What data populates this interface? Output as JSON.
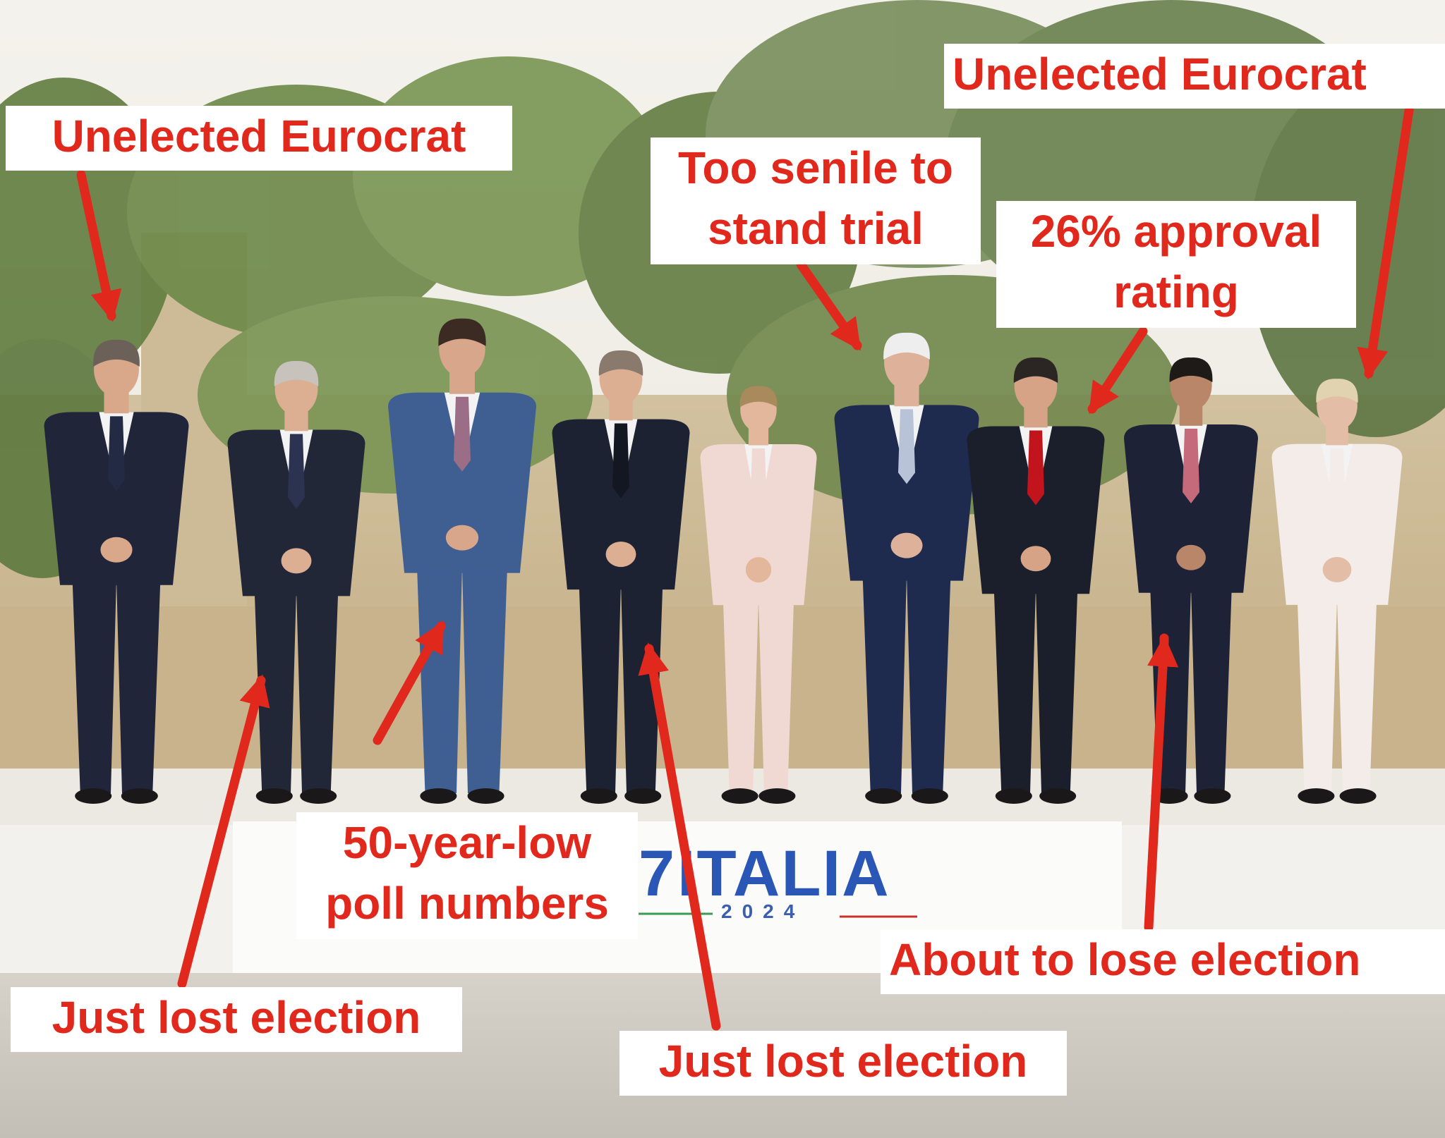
{
  "colors": {
    "annotation_red": "#e0281c",
    "label_bg": "#ffffff",
    "logo_blue": "#2a57b6",
    "sky": "#f2f0ea",
    "stone": "#cdbb97",
    "foliage": "#6f8a4a",
    "stage_floor": "#ece9e3",
    "ground": "#c9c5bd"
  },
  "logo": {
    "mark": "7",
    "word": "ITALIA",
    "year": "2024"
  },
  "annotations": [
    {
      "text": [
        "Unelected Eurocrat"
      ]
    },
    {
      "text": [
        "Unelected Eurocrat"
      ]
    },
    {
      "text": [
        "Too senile to",
        "stand trial"
      ]
    },
    {
      "text": [
        "26% approval",
        "rating"
      ]
    },
    {
      "text": [
        "50-year-low",
        "poll numbers"
      ]
    },
    {
      "text": [
        "Just lost election"
      ]
    },
    {
      "text": [
        "Just lost election"
      ]
    },
    {
      "text": [
        "About to lose election"
      ]
    }
  ],
  "people": [
    {
      "suit": "#20253a",
      "tie": "#222a44",
      "skin": "#d9a88a",
      "hair": "#6b6158"
    },
    {
      "suit": "#222737",
      "tie": "#2b3350",
      "skin": "#dcae92",
      "hair": "#c7c2bc"
    },
    {
      "suit": "#3f5f93",
      "tie": "#9b6d87",
      "skin": "#d8a68a",
      "hair": "#3b2b22"
    },
    {
      "suit": "#1d2233",
      "tie": "#131722",
      "skin": "#dcae92",
      "hair": "#8a7a6e"
    },
    {
      "suit": "#f0d9d2",
      "tie": "#f0d9d2",
      "skin": "#e2b79c",
      "hair": "#a88a5c"
    },
    {
      "suit": "#1f2a4f",
      "tie": "#b9c3d8",
      "skin": "#deb29a",
      "hair": "#eeeeee"
    },
    {
      "suit": "#1b1e2b",
      "tie": "#c2141c",
      "skin": "#d6a387",
      "hair": "#2b2624"
    },
    {
      "suit": "#1d2236",
      "tie": "#c56a7a",
      "skin": "#b9866a",
      "hair": "#1e1a18"
    },
    {
      "suit": "#f3ece9",
      "tie": "#f3ece9",
      "skin": "#e3bda6",
      "hair": "#e2d3b0"
    }
  ]
}
